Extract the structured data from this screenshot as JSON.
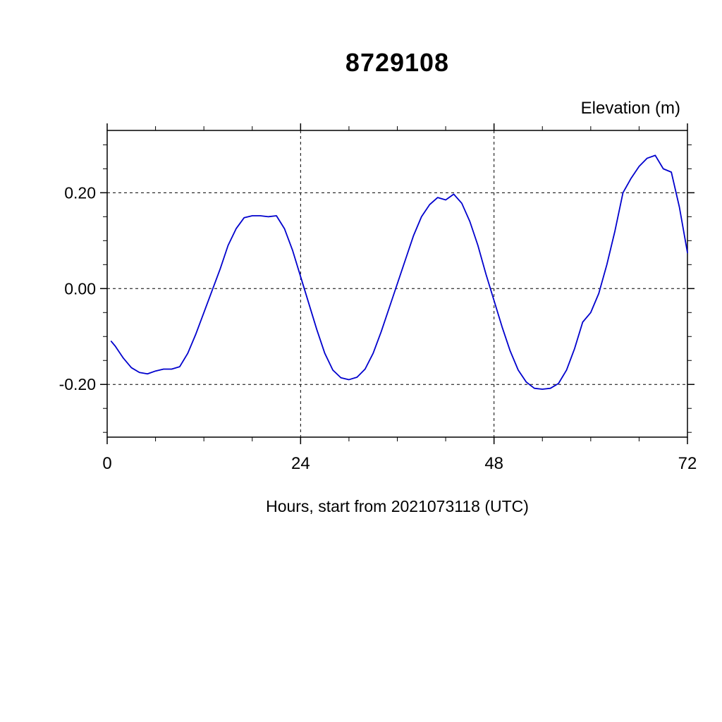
{
  "chart_data": {
    "type": "line",
    "title": "8729108",
    "xlabel": "Hours, start from 2021073118 (UTC)",
    "ylabel": "Elevation (m)",
    "xlim": [
      0,
      72
    ],
    "ylim": [
      -0.31,
      0.33
    ],
    "xticks": [
      0,
      24,
      48,
      72
    ],
    "xtick_labels": [
      "0",
      "24",
      "48",
      "72"
    ],
    "yticks": [
      -0.2,
      0.0,
      0.2
    ],
    "ytick_labels": [
      "-0.20",
      "0.00",
      "0.20"
    ],
    "x_minor_step": 6,
    "y_minor_step": 0.05,
    "grid_x": [
      24,
      48
    ],
    "grid_y": [
      -0.2,
      0.0,
      0.2
    ],
    "grid_style": "dashed",
    "frame_color": "#000000",
    "line_color": "#0000cd",
    "series": [
      {
        "name": "elevation",
        "x": [
          0.5,
          1,
          2,
          3,
          4,
          5,
          6,
          7,
          8,
          9,
          10,
          11,
          12,
          13,
          14,
          15,
          16,
          17,
          18,
          19,
          20,
          21,
          22,
          23,
          24,
          25,
          26,
          27,
          28,
          29,
          30,
          31,
          32,
          33,
          34,
          35,
          36,
          37,
          38,
          39,
          40,
          41,
          42,
          43,
          44,
          45,
          46,
          47,
          48,
          49,
          50,
          51,
          52,
          53,
          54,
          55,
          56,
          57,
          58,
          59,
          60,
          61,
          62,
          63,
          64,
          65,
          66,
          67,
          68,
          69,
          70,
          71,
          72
        ],
        "y": [
          -0.11,
          -0.12,
          -0.145,
          -0.165,
          -0.175,
          -0.178,
          -0.172,
          -0.168,
          -0.168,
          -0.163,
          -0.135,
          -0.095,
          -0.05,
          -0.005,
          0.04,
          0.09,
          0.125,
          0.148,
          0.152,
          0.152,
          0.15,
          0.152,
          0.125,
          0.08,
          0.025,
          -0.03,
          -0.085,
          -0.135,
          -0.17,
          -0.186,
          -0.19,
          -0.185,
          -0.168,
          -0.135,
          -0.09,
          -0.04,
          0.01,
          0.06,
          0.11,
          0.15,
          0.175,
          0.19,
          0.185,
          0.197,
          0.178,
          0.14,
          0.09,
          0.03,
          -0.025,
          -0.08,
          -0.13,
          -0.17,
          -0.195,
          -0.208,
          -0.21,
          -0.208,
          -0.198,
          -0.17,
          -0.125,
          -0.07,
          -0.05,
          -0.01,
          0.05,
          0.12,
          0.2,
          0.23,
          0.255,
          0.272,
          0.278,
          0.25,
          0.243,
          0.17,
          0.075
        ]
      }
    ]
  }
}
